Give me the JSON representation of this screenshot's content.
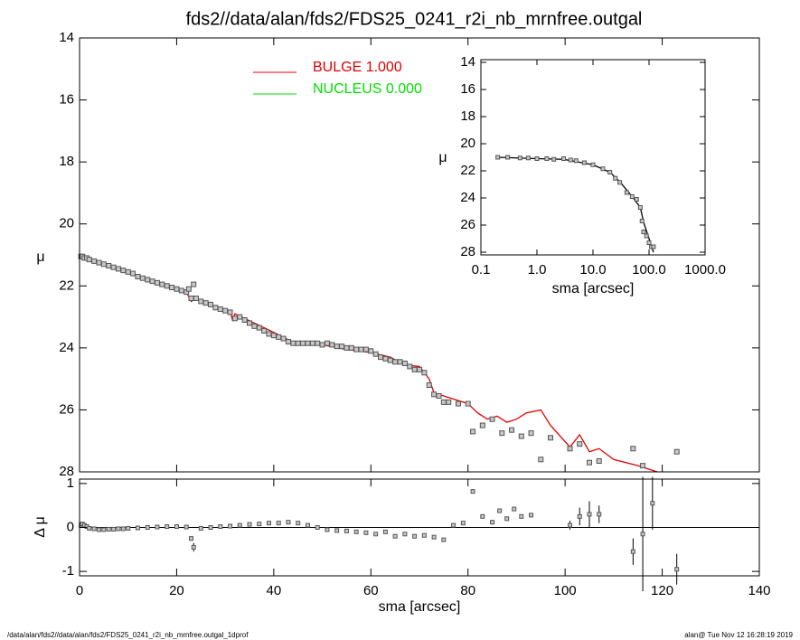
{
  "chart_data": [
    {
      "type": "scatter",
      "title": "fds2//data/alan/fds2/FDS25_0241_r2i_nb_mrnfree.outgal",
      "ylabel": "μ",
      "xlim": [
        0,
        140
      ],
      "xticks": [
        0,
        20,
        40,
        60,
        80,
        100,
        120,
        140
      ],
      "ylim": [
        28,
        14
      ],
      "yticks": [
        14,
        16,
        18,
        20,
        22,
        24,
        26,
        28
      ],
      "marker_color": "#555555",
      "x": [
        0.3,
        0.6,
        1,
        1.5,
        2,
        3,
        4,
        5,
        6,
        7,
        8,
        9,
        10,
        11,
        12,
        13,
        14,
        15,
        16,
        17,
        18,
        19,
        20,
        21,
        22,
        22.5,
        23,
        23.5,
        24,
        25,
        26,
        27,
        28,
        29,
        30,
        31,
        32,
        33,
        34,
        35,
        36,
        37,
        38,
        39,
        40,
        41,
        42,
        43,
        44,
        45,
        46,
        47,
        48,
        49,
        50,
        51,
        52,
        53,
        54,
        55,
        56,
        57,
        58,
        59,
        60,
        61,
        62,
        63,
        64,
        65,
        66,
        67,
        68,
        69,
        70,
        71,
        72,
        73,
        74,
        75,
        76,
        78,
        80,
        81,
        83,
        85,
        87,
        89,
        91,
        93,
        95,
        97,
        101,
        103,
        105,
        107,
        114,
        116,
        123
      ],
      "values": [
        21.05,
        21.05,
        21.1,
        21.1,
        21.15,
        21.2,
        21.25,
        21.3,
        21.35,
        21.4,
        21.45,
        21.5,
        21.55,
        21.6,
        21.7,
        21.75,
        21.8,
        21.85,
        21.9,
        21.95,
        22.0,
        22.05,
        22.1,
        22.15,
        22.2,
        22.1,
        22.4,
        21.95,
        22.4,
        22.5,
        22.55,
        22.6,
        22.7,
        22.75,
        22.8,
        22.85,
        23.05,
        23.0,
        23.1,
        23.2,
        23.3,
        23.35,
        23.45,
        23.55,
        23.6,
        23.65,
        23.7,
        23.8,
        23.85,
        23.85,
        23.85,
        23.85,
        23.85,
        23.85,
        23.9,
        23.85,
        23.9,
        23.95,
        23.95,
        24.0,
        24.0,
        24.05,
        24.05,
        24.05,
        24.1,
        24.2,
        24.3,
        24.35,
        24.4,
        24.45,
        24.45,
        24.5,
        24.6,
        24.7,
        24.7,
        24.8,
        25.2,
        25.5,
        25.55,
        25.75,
        25.75,
        25.8,
        25.8,
        26.7,
        26.5,
        26.3,
        26.75,
        26.65,
        26.85,
        26.75,
        27.6,
        26.9,
        27.25,
        27.1,
        27.7,
        27.65,
        27.25,
        27.8,
        27.35
      ],
      "series": [
        {
          "name": "BULGE  1.000",
          "color": "#e00000",
          "x": [
            0,
            5,
            10,
            15,
            20,
            22,
            23,
            24,
            30,
            31,
            31.5,
            32,
            40,
            45,
            50,
            55,
            60,
            64,
            67,
            70,
            72,
            73,
            78,
            80,
            82,
            84,
            86,
            88,
            90,
            92,
            95,
            97,
            99,
            101,
            103,
            105,
            107,
            110,
            115,
            119
          ],
          "values": [
            21.0,
            21.3,
            21.6,
            21.85,
            22.1,
            22.2,
            22.5,
            22.4,
            22.8,
            22.8,
            23.1,
            22.9,
            23.5,
            23.9,
            23.9,
            24.05,
            24.15,
            24.3,
            24.55,
            24.6,
            25.0,
            25.45,
            25.7,
            25.8,
            26.1,
            26.3,
            26.2,
            26.4,
            26.3,
            26.1,
            26.0,
            26.5,
            26.85,
            27.2,
            26.8,
            27.35,
            27.25,
            27.6,
            27.8,
            28.0
          ]
        },
        {
          "name": "NUCLEUS  0.000",
          "color": "#00e000"
        }
      ]
    },
    {
      "type": "errorbar",
      "xlabel": "sma [arcsec]",
      "ylabel": "Δ μ",
      "xlim": [
        0,
        140
      ],
      "xticks": [
        0,
        20,
        40,
        60,
        80,
        100,
        120,
        140
      ],
      "ylim": [
        -1.1,
        1.1
      ],
      "yticks": [
        -1,
        0,
        1
      ],
      "x": [
        0.3,
        0.6,
        1,
        1.5,
        2,
        3,
        4,
        5,
        6,
        7,
        8,
        9,
        10,
        12,
        14,
        16,
        18,
        20,
        22,
        23,
        23.5,
        25,
        27,
        29,
        31,
        33,
        35,
        37,
        39,
        41,
        43,
        45,
        47,
        49,
        51,
        53,
        55,
        57,
        59,
        61,
        63,
        65,
        67,
        69,
        71,
        73,
        75,
        77,
        79,
        81,
        83,
        85,
        86.5,
        88,
        89.5,
        91,
        93,
        101,
        103,
        105,
        107,
        114,
        116,
        118,
        123
      ],
      "values": [
        0.05,
        0.08,
        0.05,
        0.02,
        -0.02,
        -0.03,
        -0.05,
        -0.05,
        -0.04,
        -0.04,
        -0.03,
        -0.03,
        -0.02,
        -0.01,
        0,
        0.01,
        0.02,
        0.02,
        0.01,
        -0.25,
        -0.45,
        -0.02,
        0,
        0.02,
        0.03,
        0.05,
        0.07,
        0.08,
        0.1,
        0.1,
        0.12,
        0.1,
        0.05,
        0,
        -0.05,
        -0.07,
        -0.08,
        -0.1,
        -0.12,
        -0.15,
        -0.1,
        -0.2,
        -0.15,
        -0.2,
        -0.18,
        -0.22,
        -0.28,
        0.05,
        0.1,
        0.82,
        0.25,
        0.12,
        0.38,
        0.2,
        0.42,
        0.25,
        0.28,
        0.05,
        0.25,
        0.3,
        0.3,
        -0.55,
        -0.15,
        0.55,
        -0.95
      ],
      "errors": [
        0.02,
        0.02,
        0.02,
        0.02,
        0.02,
        0.02,
        0.02,
        0.02,
        0.02,
        0.02,
        0.02,
        0.02,
        0.02,
        0.02,
        0.02,
        0.02,
        0.02,
        0.02,
        0.02,
        0.03,
        0.1,
        0.02,
        0.02,
        0.02,
        0.02,
        0.02,
        0.02,
        0.02,
        0.02,
        0.02,
        0.02,
        0.02,
        0.02,
        0.02,
        0.02,
        0.02,
        0.02,
        0.02,
        0.02,
        0.02,
        0.02,
        0.02,
        0.02,
        0.02,
        0.02,
        0.02,
        0.02,
        0.02,
        0.02,
        0.05,
        0.05,
        0.05,
        0.05,
        0.05,
        0.05,
        0.05,
        0.05,
        0.1,
        0.2,
        0.3,
        0.2,
        0.3,
        1.3,
        0.6,
        0.35
      ]
    },
    {
      "type": "scatter",
      "xlabel": "sma [arcsec]",
      "ylabel": "μ",
      "xlog": true,
      "xlim": [
        0.1,
        1000
      ],
      "xticks": [
        0.1,
        {
          "value": 1,
          "label": "1.0"
        },
        {
          "value": 10,
          "label": "10.0"
        },
        {
          "value": 100,
          "label": "100.0"
        },
        {
          "value": 1000,
          "label": "1000.0"
        }
      ],
      "ylim": [
        28.2,
        13.8
      ],
      "yticks": [
        14,
        16,
        18,
        20,
        22,
        24,
        26,
        28
      ],
      "marker_color": "#555555",
      "x": [
        0.2,
        0.3,
        0.5,
        0.7,
        1,
        1.5,
        2,
        3,
        4,
        5,
        7,
        10,
        15,
        20,
        25,
        30,
        40,
        50,
        60,
        70,
        75,
        80,
        90,
        100,
        110,
        120
      ],
      "values": [
        21.0,
        21.0,
        21.05,
        21.05,
        21.1,
        21.1,
        21.15,
        21.1,
        21.2,
        21.25,
        21.4,
        21.55,
        21.85,
        22.1,
        22.55,
        22.85,
        23.6,
        23.9,
        24.1,
        24.7,
        25.7,
        26.5,
        26.8,
        27.3,
        27.6,
        27.6
      ],
      "series": [
        {
          "color": "#000000",
          "x": [
            0.2,
            1,
            3,
            10,
            20,
            30,
            50,
            70,
            80,
            100,
            120
          ],
          "values": [
            21.0,
            21.1,
            21.15,
            21.55,
            22.1,
            22.8,
            23.9,
            24.7,
            25.8,
            27.0,
            28.0
          ]
        }
      ]
    }
  ],
  "footer": {
    "left": "/data/alan/fds2//data/alan/fds2/FDS25_0241_r2i_nb_mrnfree.outgal_1dprof",
    "right": "alan@  Tue Nov 12 16:28:19 2019"
  }
}
